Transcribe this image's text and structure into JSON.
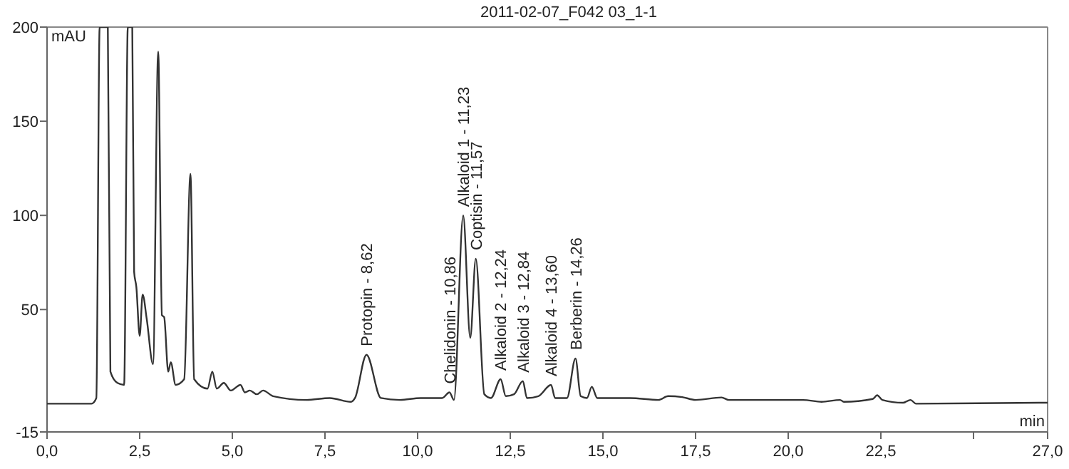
{
  "chart_data": {
    "type": "line",
    "title": "2011-02-07_F042 03_1-1",
    "xlabel": "min",
    "ylabel": "mAU",
    "xlim": [
      0,
      27
    ],
    "ylim": [
      -15,
      200
    ],
    "xticks": [
      {
        "value": 0,
        "label": "0,0"
      },
      {
        "value": 2.5,
        "label": "2,5"
      },
      {
        "value": 5,
        "label": "5,0"
      },
      {
        "value": 7.5,
        "label": "7,5"
      },
      {
        "value": 10,
        "label": "10,0"
      },
      {
        "value": 12.5,
        "label": "12,5"
      },
      {
        "value": 15,
        "label": "15,0"
      },
      {
        "value": 17.5,
        "label": "17,5"
      },
      {
        "value": 20,
        "label": "20,0"
      },
      {
        "value": 22.5,
        "label": "22,5"
      },
      {
        "value": 25,
        "label": null
      },
      {
        "value": 27,
        "label": "27,0"
      }
    ],
    "yticks": [
      -15,
      50,
      100,
      150,
      200
    ],
    "grid": false,
    "marker": "none",
    "line_style": "solid",
    "series": [
      {
        "color": "#333333",
        "x": [
          0,
          1.2,
          1.33,
          1.42,
          1.64,
          1.71,
          1.9,
          2.08,
          2.18,
          2.3,
          2.35,
          2.41,
          2.5,
          2.58,
          2.69,
          2.86,
          3.0,
          3.1,
          3.16,
          3.27,
          3.34,
          3.47,
          3.7,
          3.87,
          3.97,
          4.33,
          4.46,
          4.58,
          4.77,
          4.96,
          5.22,
          5.34,
          5.47,
          5.66,
          5.83,
          6.1,
          7.0,
          7.63,
          8.2,
          8.31,
          8.62,
          9.01,
          9.52,
          10.08,
          10.66,
          10.86,
          10.98,
          11.23,
          11.42,
          11.57,
          11.8,
          11.98,
          12.24,
          12.38,
          12.6,
          12.84,
          12.95,
          13.26,
          13.6,
          13.71,
          14.03,
          14.26,
          14.4,
          14.57,
          14.7,
          14.85,
          15.73,
          16.5,
          16.76,
          17.14,
          17.5,
          18.2,
          18.4,
          20.4,
          20.9,
          21.4,
          21.5,
          22.28,
          22.4,
          22.54,
          23.1,
          23.3,
          23.45,
          26.77,
          27
        ],
        "values": [
          0,
          0,
          3,
          200,
          200,
          17,
          11,
          10,
          200,
          200,
          70,
          62,
          36,
          58,
          45,
          21,
          187,
          47,
          46,
          17,
          22,
          10,
          13,
          122,
          13,
          8,
          17,
          8,
          11,
          7,
          10,
          6,
          7,
          5,
          7,
          4,
          2,
          3,
          1,
          3,
          26,
          3,
          2,
          3,
          3,
          6,
          2,
          100,
          35,
          77,
          5,
          3,
          13,
          4,
          5,
          12,
          3,
          4,
          10,
          3,
          3,
          24,
          4,
          3,
          9,
          3,
          3,
          2,
          4,
          3.5,
          2,
          3.3,
          2,
          2,
          1,
          2,
          1,
          2.5,
          4.5,
          2,
          0.5,
          2,
          0,
          0.5,
          0.5
        ]
      }
    ],
    "annotations": [
      {
        "text": "Protopin - 8,62",
        "x": 8.62,
        "y": 26
      },
      {
        "text": "Chelidonin - 10,86",
        "x": 10.86,
        "y": 6
      },
      {
        "text": "Alkaloid 1 - 11,23",
        "x": 11.23,
        "y": 100
      },
      {
        "text": "Coptisin - 11,57",
        "x": 11.57,
        "y": 77
      },
      {
        "text": "Alkaloid 2 - 12,24",
        "x": 12.24,
        "y": 13
      },
      {
        "text": "Alkaloid 3 - 12,84",
        "x": 12.84,
        "y": 12
      },
      {
        "text": "Alkaloid 4 - 13,60",
        "x": 13.6,
        "y": 10
      },
      {
        "text": "Berberin - 14,26",
        "x": 14.26,
        "y": 24
      }
    ]
  }
}
